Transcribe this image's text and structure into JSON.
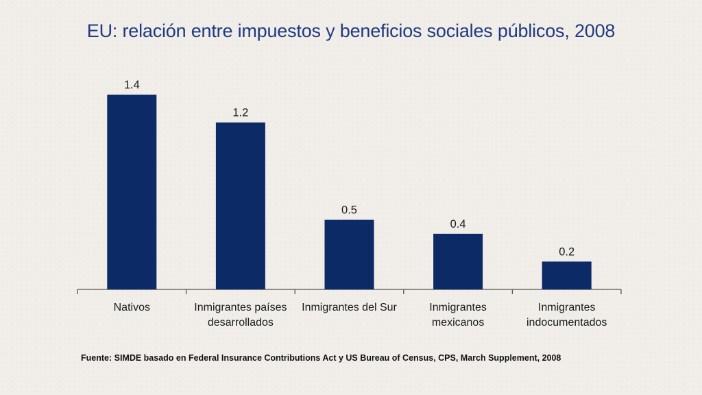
{
  "slide": {
    "title": "EU: relación entre impuestos y beneficios sociales públicos, 2008",
    "source": "Fuente: SIMDE basado en Federal Insurance Contributions Act y US Bureau of Census, CPS, March Supplement, 2008"
  },
  "colors": {
    "bar": "#0c2a66",
    "axis": "#555555",
    "text": "#1a1a1a",
    "title": "#1f3a80"
  },
  "chart_data": {
    "type": "bar",
    "title": "",
    "xlabel": "",
    "ylabel": "",
    "ylim": [
      0,
      1.4
    ],
    "grid": false,
    "legend": "none",
    "categories": [
      [
        "Nativos"
      ],
      [
        "Inmigrantes países",
        "desarrollados"
      ],
      [
        "Inmigrantes del Sur"
      ],
      [
        "Inmigrantes",
        "mexicanos"
      ],
      [
        "Inmigrantes",
        "indocumentados"
      ]
    ],
    "values": [
      1.4,
      1.2,
      0.5,
      0.4,
      0.2
    ],
    "value_labels": [
      "1.4",
      "1.2",
      "0.5",
      "0.4",
      "0.2"
    ]
  }
}
